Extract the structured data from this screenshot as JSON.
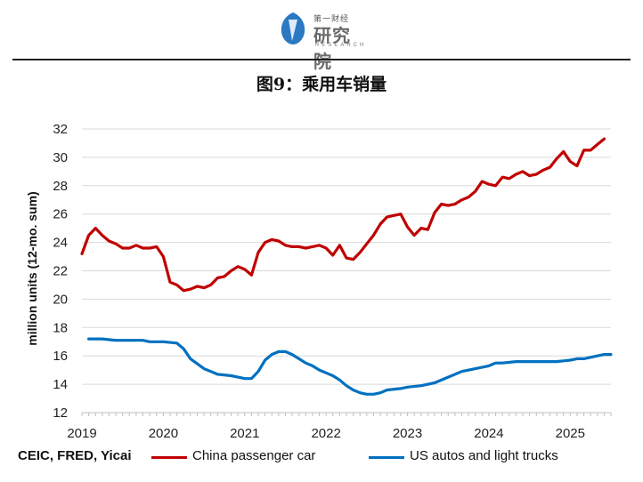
{
  "header": {
    "logo_small": "第一财经",
    "logo_main": "研究院",
    "logo_sub": "RESEARCH"
  },
  "figure_title": "图9：乘用车销量",
  "source": "CEIC, FRED, Yicai",
  "colors": {
    "china": "#c00000",
    "us": "#0070c0",
    "grid": "#d9d9d9",
    "axis": "#bfbfbf"
  },
  "chart_data": {
    "type": "line",
    "title": "",
    "xlabel": "",
    "ylabel": "million units (12-mo. sum)",
    "ylim": [
      12,
      32
    ],
    "yticks": [
      12,
      14,
      16,
      18,
      20,
      22,
      24,
      26,
      28,
      30,
      32
    ],
    "xlim": [
      2019.0,
      2025.5
    ],
    "xticks": [
      2019,
      2020,
      2021,
      2022,
      2023,
      2024,
      2025
    ],
    "xtick_labels": [
      "2019",
      "2020",
      "2021",
      "2022",
      "2023",
      "2024",
      "2025"
    ],
    "grid": "horizontal",
    "legend_position": "bottom",
    "series": [
      {
        "name": "China passenger car",
        "color": "#c00000",
        "points": [
          [
            2019.0,
            23.2
          ],
          [
            2019.083,
            24.5
          ],
          [
            2019.167,
            25.0
          ],
          [
            2019.25,
            24.5
          ],
          [
            2019.333,
            24.1
          ],
          [
            2019.417,
            23.9
          ],
          [
            2019.5,
            23.6
          ],
          [
            2019.583,
            23.6
          ],
          [
            2019.667,
            23.8
          ],
          [
            2019.75,
            23.6
          ],
          [
            2019.833,
            23.6
          ],
          [
            2019.917,
            23.7
          ],
          [
            2020.0,
            23.0
          ],
          [
            2020.083,
            21.2
          ],
          [
            2020.167,
            21.0
          ],
          [
            2020.25,
            20.6
          ],
          [
            2020.333,
            20.7
          ],
          [
            2020.417,
            20.9
          ],
          [
            2020.5,
            20.8
          ],
          [
            2020.583,
            21.0
          ],
          [
            2020.667,
            21.5
          ],
          [
            2020.75,
            21.6
          ],
          [
            2020.833,
            22.0
          ],
          [
            2020.917,
            22.3
          ],
          [
            2021.0,
            22.1
          ],
          [
            2021.083,
            21.7
          ],
          [
            2021.167,
            23.3
          ],
          [
            2021.25,
            24.0
          ],
          [
            2021.333,
            24.2
          ],
          [
            2021.417,
            24.1
          ],
          [
            2021.5,
            23.8
          ],
          [
            2021.583,
            23.7
          ],
          [
            2021.667,
            23.7
          ],
          [
            2021.75,
            23.6
          ],
          [
            2021.833,
            23.7
          ],
          [
            2021.917,
            23.8
          ],
          [
            2022.0,
            23.6
          ],
          [
            2022.083,
            23.1
          ],
          [
            2022.167,
            23.8
          ],
          [
            2022.25,
            22.9
          ],
          [
            2022.333,
            22.8
          ],
          [
            2022.417,
            23.3
          ],
          [
            2022.5,
            23.9
          ],
          [
            2022.583,
            24.5
          ],
          [
            2022.667,
            25.3
          ],
          [
            2022.75,
            25.8
          ],
          [
            2022.833,
            25.9
          ],
          [
            2022.917,
            26.0
          ],
          [
            2023.0,
            25.1
          ],
          [
            2023.083,
            24.5
          ],
          [
            2023.167,
            25.0
          ],
          [
            2023.25,
            24.9
          ],
          [
            2023.333,
            26.1
          ],
          [
            2023.417,
            26.7
          ],
          [
            2023.5,
            26.6
          ],
          [
            2023.583,
            26.7
          ],
          [
            2023.667,
            27.0
          ],
          [
            2023.75,
            27.2
          ],
          [
            2023.833,
            27.6
          ],
          [
            2023.917,
            28.3
          ],
          [
            2024.0,
            28.1
          ],
          [
            2024.083,
            28.0
          ],
          [
            2024.167,
            28.6
          ],
          [
            2024.25,
            28.5
          ],
          [
            2024.333,
            28.8
          ],
          [
            2024.417,
            29.0
          ],
          [
            2024.5,
            28.7
          ],
          [
            2024.583,
            28.8
          ],
          [
            2024.667,
            29.1
          ],
          [
            2024.75,
            29.3
          ],
          [
            2024.833,
            29.9
          ],
          [
            2024.917,
            30.4
          ],
          [
            2025.0,
            29.7
          ],
          [
            2025.083,
            29.4
          ],
          [
            2025.167,
            30.5
          ],
          [
            2025.25,
            30.5
          ],
          [
            2025.333,
            30.9
          ],
          [
            2025.417,
            31.3
          ]
        ]
      },
      {
        "name": "US autos and light trucks",
        "color": "#0070c0",
        "points": [
          [
            2019.083,
            17.2
          ],
          [
            2019.25,
            17.2
          ],
          [
            2019.417,
            17.1
          ],
          [
            2019.583,
            17.1
          ],
          [
            2019.75,
            17.1
          ],
          [
            2019.833,
            17.0
          ],
          [
            2020.0,
            17.0
          ],
          [
            2020.167,
            16.9
          ],
          [
            2020.25,
            16.5
          ],
          [
            2020.333,
            15.8
          ],
          [
            2020.5,
            15.1
          ],
          [
            2020.583,
            14.9
          ],
          [
            2020.667,
            14.7
          ],
          [
            2020.833,
            14.6
          ],
          [
            2020.917,
            14.5
          ],
          [
            2021.0,
            14.4
          ],
          [
            2021.083,
            14.4
          ],
          [
            2021.167,
            14.9
          ],
          [
            2021.25,
            15.7
          ],
          [
            2021.333,
            16.1
          ],
          [
            2021.417,
            16.3
          ],
          [
            2021.5,
            16.3
          ],
          [
            2021.583,
            16.1
          ],
          [
            2021.667,
            15.8
          ],
          [
            2021.75,
            15.5
          ],
          [
            2021.833,
            15.3
          ],
          [
            2021.917,
            15.0
          ],
          [
            2022.0,
            14.8
          ],
          [
            2022.083,
            14.6
          ],
          [
            2022.167,
            14.3
          ],
          [
            2022.25,
            13.9
          ],
          [
            2022.333,
            13.6
          ],
          [
            2022.417,
            13.4
          ],
          [
            2022.5,
            13.3
          ],
          [
            2022.583,
            13.3
          ],
          [
            2022.667,
            13.4
          ],
          [
            2022.75,
            13.6
          ],
          [
            2022.917,
            13.7
          ],
          [
            2023.0,
            13.8
          ],
          [
            2023.167,
            13.9
          ],
          [
            2023.333,
            14.1
          ],
          [
            2023.5,
            14.5
          ],
          [
            2023.667,
            14.9
          ],
          [
            2023.833,
            15.1
          ],
          [
            2024.0,
            15.3
          ],
          [
            2024.083,
            15.5
          ],
          [
            2024.167,
            15.5
          ],
          [
            2024.333,
            15.6
          ],
          [
            2024.5,
            15.6
          ],
          [
            2024.667,
            15.6
          ],
          [
            2024.833,
            15.6
          ],
          [
            2025.0,
            15.7
          ],
          [
            2025.083,
            15.8
          ],
          [
            2025.167,
            15.8
          ],
          [
            2025.333,
            16.0
          ],
          [
            2025.417,
            16.1
          ],
          [
            2025.5,
            16.1
          ]
        ]
      }
    ]
  }
}
